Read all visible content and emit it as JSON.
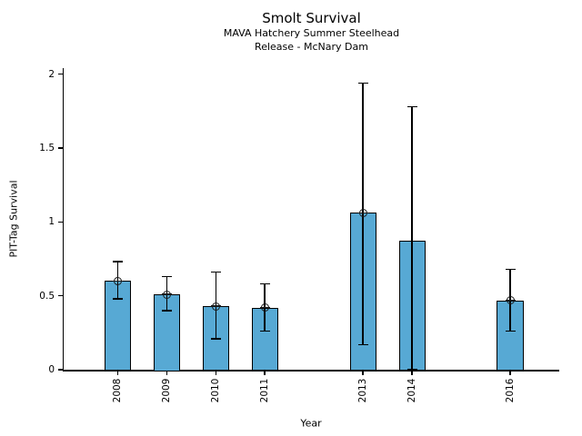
{
  "title": "Smolt Survival",
  "subtitle_line1": "MAVA Hatchery Summer Steelhead",
  "subtitle_line2": "Release - McNary Dam",
  "colors": {
    "bar_fill": "#57A9D4",
    "bar_edge": "#000000",
    "axis": "#000000",
    "text": "#000000",
    "background": "#FFFFFF"
  },
  "chart_data": {
    "type": "bar",
    "title": "Smolt Survival",
    "subtitle_line1": "MAVA Hatchery Summer Steelhead",
    "subtitle_line2": "Release - McNary Dam",
    "xlabel": "Year",
    "ylabel": "PIT-Tag Survival",
    "x": [
      2008,
      2009,
      2010,
      2011,
      2013,
      2014,
      2016
    ],
    "x_labels": [
      "2008",
      "2009",
      "2010",
      "2011",
      "2013",
      "2014",
      "2016"
    ],
    "values": [
      0.6,
      0.51,
      0.43,
      0.42,
      1.06,
      0.87,
      0.47
    ],
    "error_low": [
      0.48,
      0.4,
      0.21,
      0.26,
      0.17,
      0.0,
      0.26
    ],
    "error_high": [
      0.73,
      0.63,
      0.66,
      0.58,
      1.94,
      1.78,
      0.68
    ],
    "point_marker": [
      true,
      true,
      true,
      true,
      true,
      false,
      true
    ],
    "xlim": [
      2006.9,
      2017.0
    ],
    "ylim": [
      0,
      2.04
    ],
    "yticks": [
      0,
      0.5,
      1,
      1.5,
      2
    ],
    "ytick_labels": [
      "0",
      "0.5",
      "1",
      "1.5",
      "2"
    ],
    "bar_width_years": 0.54,
    "bar_color": "#57A9D4",
    "bar_edge_color": "#000000",
    "grid": false,
    "legend": null
  }
}
